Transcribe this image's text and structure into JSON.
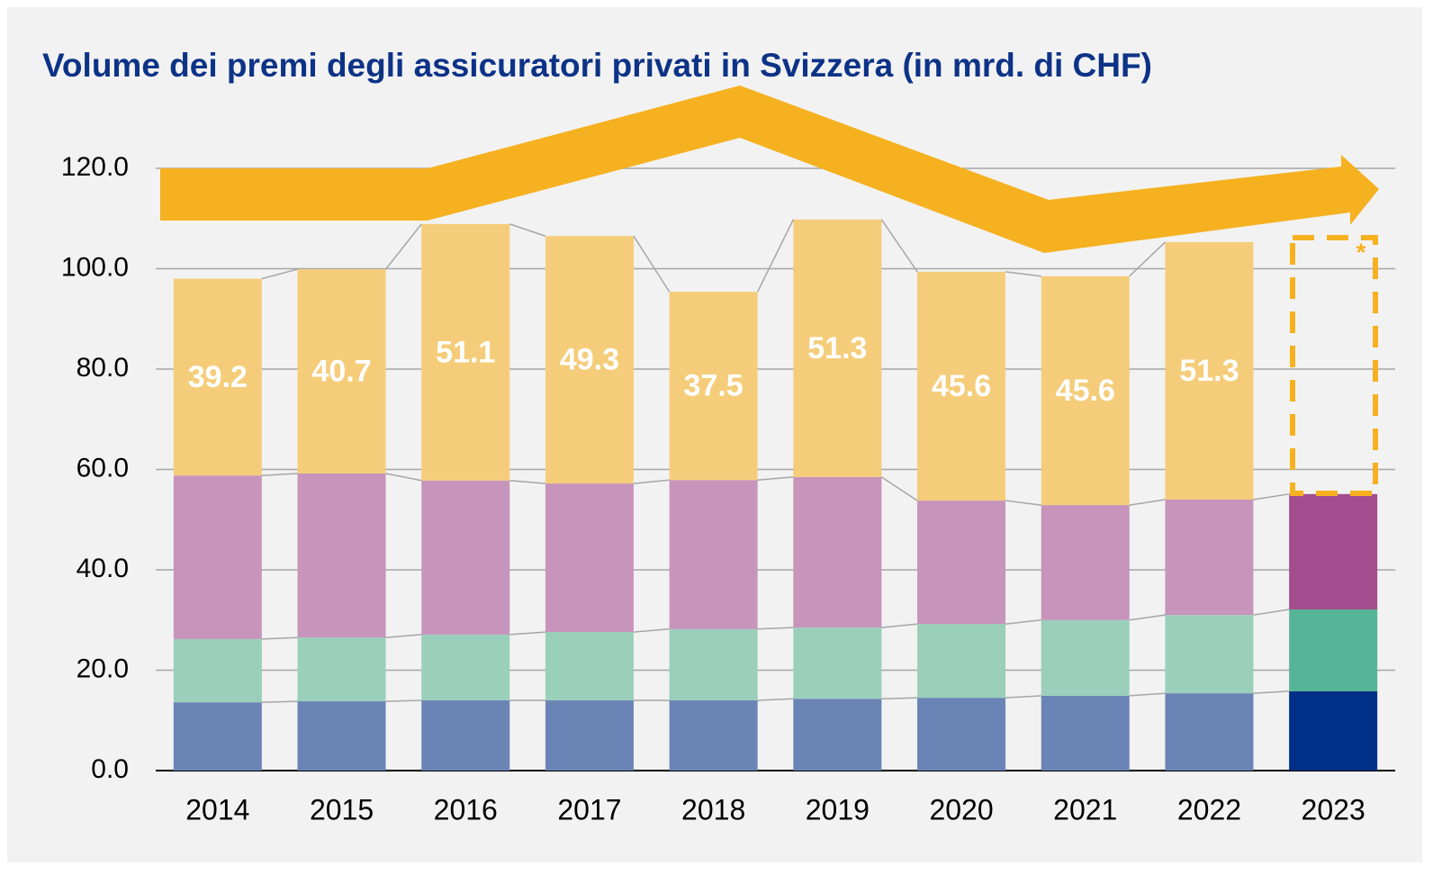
{
  "chart_data": {
    "type": "stacked_bar",
    "title": "Volume dei premi degli assicuratori privati in Svizzera (in mrd. di CHF)",
    "annotation": "*",
    "categories": [
      "2014",
      "2015",
      "2016",
      "2017",
      "2018",
      "2019",
      "2020",
      "2021",
      "2022",
      "2023"
    ],
    "series": [
      {
        "color": "#6b84b6",
        "highlight_color": "#003087",
        "values": [
          13.6,
          13.8,
          14.0,
          14.0,
          14.0,
          14.3,
          14.5,
          14.9,
          15.4,
          15.8
        ]
      },
      {
        "color": "#99cfbb",
        "highlight_color": "#55b596",
        "values": [
          12.6,
          12.7,
          13.1,
          13.6,
          14.2,
          14.2,
          14.7,
          15.1,
          15.6,
          16.3
        ]
      },
      {
        "color": "#c794bb",
        "highlight_color": "#a24d8d",
        "values": [
          32.6,
          32.7,
          30.7,
          29.6,
          29.7,
          30.0,
          24.6,
          22.9,
          23.0,
          23.0
        ]
      },
      {
        "color": "#f5cd7a",
        "highlight_color": "#f5cd7a",
        "values": [
          39.2,
          40.7,
          51.1,
          49.3,
          37.5,
          51.3,
          45.6,
          45.6,
          51.3,
          null
        ],
        "show_labels": true
      }
    ],
    "highlight_index": 9,
    "ylim": [
      0,
      120
    ],
    "yticks": [
      {
        "value": 0,
        "label": "0.0"
      },
      {
        "value": 20,
        "label": "20.0"
      },
      {
        "value": 40,
        "label": "40.0"
      },
      {
        "value": 60,
        "label": "60.0"
      },
      {
        "value": 80,
        "label": "80.0"
      },
      {
        "value": 100,
        "label": "100.0"
      },
      {
        "value": 120,
        "label": "120.0"
      }
    ],
    "grid": true
  }
}
